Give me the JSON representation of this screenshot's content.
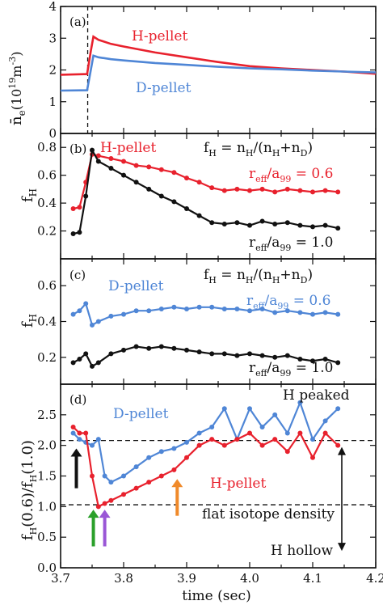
{
  "colors": {
    "red": "#e8212d",
    "blue": "#4f86d6",
    "black": "#111111",
    "green": "#2aa02a",
    "purple": "#9a57d6",
    "orange": "#f08a2a"
  },
  "chart_data": [
    {
      "panel": "a",
      "panel_label": "(a)",
      "type": "line",
      "ylabel_main": "n̄",
      "ylabel_sub": "e",
      "ylabel_unit": "(10",
      "ylabel_exp": "19",
      "ylabel_unit2": "m",
      "ylabel_exp2": "-3",
      "ylabel_close": ")",
      "ylim": [
        0,
        4
      ],
      "yticks": [
        "0",
        "1",
        "2",
        "3",
        "4"
      ],
      "xlim": [
        3.7,
        4.2
      ],
      "vline_x": 3.743,
      "series": [
        {
          "name": "H-pellet",
          "color": "red",
          "x": [
            3.7,
            3.742,
            3.748,
            3.752,
            3.76,
            3.78,
            3.8,
            3.85,
            3.9,
            3.95,
            4.0,
            4.05,
            4.1,
            4.15,
            4.2
          ],
          "y": [
            1.85,
            1.87,
            2.6,
            3.05,
            2.95,
            2.82,
            2.74,
            2.55,
            2.4,
            2.25,
            2.12,
            2.05,
            2.0,
            1.95,
            1.88
          ]
        },
        {
          "name": "D-pellet",
          "color": "blue",
          "x": [
            3.7,
            3.742,
            3.748,
            3.752,
            3.76,
            3.78,
            3.8,
            3.85,
            3.9,
            3.95,
            4.0,
            4.05,
            4.1,
            4.15,
            4.2
          ],
          "y": [
            1.35,
            1.36,
            2.0,
            2.45,
            2.4,
            2.34,
            2.3,
            2.22,
            2.16,
            2.1,
            2.05,
            2.02,
            1.98,
            1.95,
            1.92
          ]
        }
      ],
      "labels": [
        {
          "text": "H-pellet",
          "color": "red"
        },
        {
          "text": "D-pellet",
          "color": "blue"
        }
      ]
    },
    {
      "panel": "b",
      "panel_label": "(b)",
      "type": "line",
      "ylabel_main": "f",
      "ylabel_sub": "H",
      "ylim": [
        0,
        0.9
      ],
      "yticks": [
        "0.2",
        "0.4",
        "0.6",
        "0.8"
      ],
      "ytick_values": [
        0.2,
        0.4,
        0.6,
        0.8
      ],
      "xlim": [
        3.7,
        4.2
      ],
      "series": [
        {
          "name": "r_eff/a_99 = 0.6",
          "color": "red",
          "x": [
            3.72,
            3.73,
            3.74,
            3.75,
            3.76,
            3.78,
            3.8,
            3.82,
            3.84,
            3.86,
            3.88,
            3.9,
            3.92,
            3.94,
            3.96,
            3.98,
            4.0,
            4.02,
            4.04,
            4.06,
            4.08,
            4.1,
            4.12,
            4.14
          ],
          "y": [
            0.36,
            0.37,
            0.55,
            0.75,
            0.74,
            0.72,
            0.7,
            0.67,
            0.66,
            0.64,
            0.62,
            0.58,
            0.55,
            0.51,
            0.49,
            0.5,
            0.49,
            0.5,
            0.48,
            0.5,
            0.49,
            0.48,
            0.49,
            0.48
          ]
        },
        {
          "name": "r_eff/a_99 = 1.0",
          "color": "black",
          "x": [
            3.72,
            3.73,
            3.74,
            3.75,
            3.76,
            3.78,
            3.8,
            3.82,
            3.84,
            3.86,
            3.88,
            3.9,
            3.92,
            3.94,
            3.96,
            3.98,
            4.0,
            4.02,
            4.04,
            4.06,
            4.08,
            4.1,
            4.12,
            4.14
          ],
          "y": [
            0.18,
            0.19,
            0.45,
            0.78,
            0.7,
            0.65,
            0.6,
            0.55,
            0.5,
            0.45,
            0.41,
            0.36,
            0.31,
            0.26,
            0.25,
            0.26,
            0.24,
            0.27,
            0.25,
            0.26,
            0.24,
            0.23,
            0.24,
            0.22
          ]
        }
      ],
      "labels": [
        {
          "text": "H-pellet",
          "color": "red"
        },
        {
          "text": "f",
          "sub": "H",
          "rest": " = n",
          "sub2": "H",
          "rest2": "/(n",
          "sub3": "H",
          "rest3": "+n",
          "sub4": "D",
          "rest4": ")",
          "color": "black"
        },
        {
          "text": "r",
          "sub": "eff",
          "rest": "/a",
          "sub2": "99",
          "rest2": " = 0.6",
          "color": "red"
        },
        {
          "text": "r",
          "sub": "eff",
          "rest": "/a",
          "sub2": "99",
          "rest2": " = 1.0",
          "color": "black"
        }
      ]
    },
    {
      "panel": "c",
      "panel_label": "(c)",
      "type": "line",
      "ylabel_main": "f",
      "ylabel_sub": "H",
      "ylim": [
        0.05,
        0.75
      ],
      "yticks": [
        "0.2",
        "0.4",
        "0.6"
      ],
      "ytick_values": [
        0.2,
        0.4,
        0.6
      ],
      "xlim": [
        3.7,
        4.2
      ],
      "series": [
        {
          "name": "r_eff/a_99 = 0.6",
          "color": "blue",
          "x": [
            3.72,
            3.73,
            3.74,
            3.75,
            3.76,
            3.78,
            3.8,
            3.82,
            3.84,
            3.86,
            3.88,
            3.9,
            3.92,
            3.94,
            3.96,
            3.98,
            4.0,
            4.02,
            4.04,
            4.06,
            4.08,
            4.1,
            4.12,
            4.14
          ],
          "y": [
            0.44,
            0.46,
            0.5,
            0.38,
            0.4,
            0.43,
            0.44,
            0.46,
            0.46,
            0.47,
            0.48,
            0.47,
            0.48,
            0.48,
            0.47,
            0.47,
            0.46,
            0.47,
            0.45,
            0.46,
            0.45,
            0.44,
            0.45,
            0.44
          ]
        },
        {
          "name": "r_eff/a_99 = 1.0",
          "color": "black",
          "x": [
            3.72,
            3.73,
            3.74,
            3.75,
            3.76,
            3.78,
            3.8,
            3.82,
            3.84,
            3.86,
            3.88,
            3.9,
            3.92,
            3.94,
            3.96,
            3.98,
            4.0,
            4.02,
            4.04,
            4.06,
            4.08,
            4.1,
            4.12,
            4.14
          ],
          "y": [
            0.17,
            0.19,
            0.22,
            0.15,
            0.17,
            0.22,
            0.24,
            0.26,
            0.25,
            0.26,
            0.25,
            0.24,
            0.23,
            0.22,
            0.22,
            0.21,
            0.22,
            0.21,
            0.2,
            0.21,
            0.19,
            0.18,
            0.19,
            0.17
          ]
        }
      ],
      "labels": [
        {
          "text": "D-pellet",
          "color": "blue"
        },
        {
          "text": "f",
          "sub": "H",
          "rest": " = n",
          "sub2": "H",
          "rest2": "/(n",
          "sub3": "H",
          "rest3": "+n",
          "sub4": "D",
          "rest4": ")",
          "color": "black"
        },
        {
          "text": "r",
          "sub": "eff",
          "rest": "/a",
          "sub2": "99",
          "rest2": " = 0.6",
          "color": "blue"
        },
        {
          "text": "r",
          "sub": "eff",
          "rest": "/a",
          "sub2": "99",
          "rest2": " = 1.0",
          "color": "black"
        }
      ]
    },
    {
      "panel": "d",
      "panel_label": "(d)",
      "type": "line",
      "ylabel_main": "f",
      "ylabel_sub": "H",
      "ylabel_mid": "(0.6)/f",
      "ylabel_sub2": "H",
      "ylabel_close": "(1.0)",
      "ylim": [
        0,
        3.0
      ],
      "yticks": [
        "0.0",
        "0.5",
        "1.0",
        "1.5",
        "2.0",
        "2.5"
      ],
      "ytick_values": [
        0.0,
        0.5,
        1.0,
        1.5,
        2.0,
        2.5
      ],
      "xlim": [
        3.7,
        4.2
      ],
      "xticks": [
        "3.7",
        "3.8",
        "3.9",
        "4.0",
        "4.1",
        "4.2"
      ],
      "xtick_values": [
        3.7,
        3.8,
        3.9,
        4.0,
        4.1,
        4.2
      ],
      "xlabel": "time (sec)",
      "hlines": [
        2.08,
        1.03
      ],
      "series": [
        {
          "name": "D-pellet",
          "color": "blue",
          "x": [
            3.72,
            3.73,
            3.74,
            3.75,
            3.76,
            3.77,
            3.78,
            3.8,
            3.82,
            3.84,
            3.86,
            3.88,
            3.9,
            3.92,
            3.94,
            3.96,
            3.98,
            4.0,
            4.02,
            4.04,
            4.06,
            4.08,
            4.1,
            4.12,
            4.14
          ],
          "y": [
            2.2,
            2.1,
            2.05,
            2.0,
            2.1,
            1.5,
            1.4,
            1.5,
            1.65,
            1.8,
            1.9,
            1.95,
            2.05,
            2.2,
            2.3,
            2.6,
            2.1,
            2.6,
            2.3,
            2.5,
            2.2,
            2.7,
            2.1,
            2.4,
            2.6
          ]
        },
        {
          "name": "H-pellet",
          "color": "red",
          "x": [
            3.72,
            3.73,
            3.74,
            3.75,
            3.76,
            3.77,
            3.78,
            3.8,
            3.82,
            3.84,
            3.86,
            3.88,
            3.9,
            3.92,
            3.94,
            3.96,
            3.98,
            4.0,
            4.02,
            4.04,
            4.06,
            4.08,
            4.1,
            4.12,
            4.14
          ],
          "y": [
            2.3,
            2.2,
            2.2,
            1.5,
            1.0,
            1.05,
            1.1,
            1.2,
            1.3,
            1.4,
            1.5,
            1.6,
            1.8,
            2.0,
            2.1,
            2.0,
            2.1,
            2.2,
            2.0,
            2.1,
            1.9,
            2.2,
            1.8,
            2.2,
            2.0
          ]
        }
      ],
      "arrows": [
        {
          "x": 3.725,
          "color": "black",
          "y_from": 1.3,
          "y_to": 1.95
        },
        {
          "x": 3.752,
          "color": "green",
          "y_from": 0.35,
          "y_to": 0.95
        },
        {
          "x": 3.77,
          "color": "purple",
          "y_from": 0.35,
          "y_to": 0.95
        },
        {
          "x": 3.885,
          "color": "orange",
          "y_from": 0.85,
          "y_to": 1.45
        }
      ],
      "labels": [
        {
          "text": "D-pellet",
          "color": "blue"
        },
        {
          "text": "H peaked",
          "color": "black"
        },
        {
          "text": "H-pellet",
          "color": "red"
        },
        {
          "text": "flat isotope density",
          "color": "black"
        },
        {
          "text": "H hollow",
          "color": "black"
        }
      ]
    }
  ]
}
